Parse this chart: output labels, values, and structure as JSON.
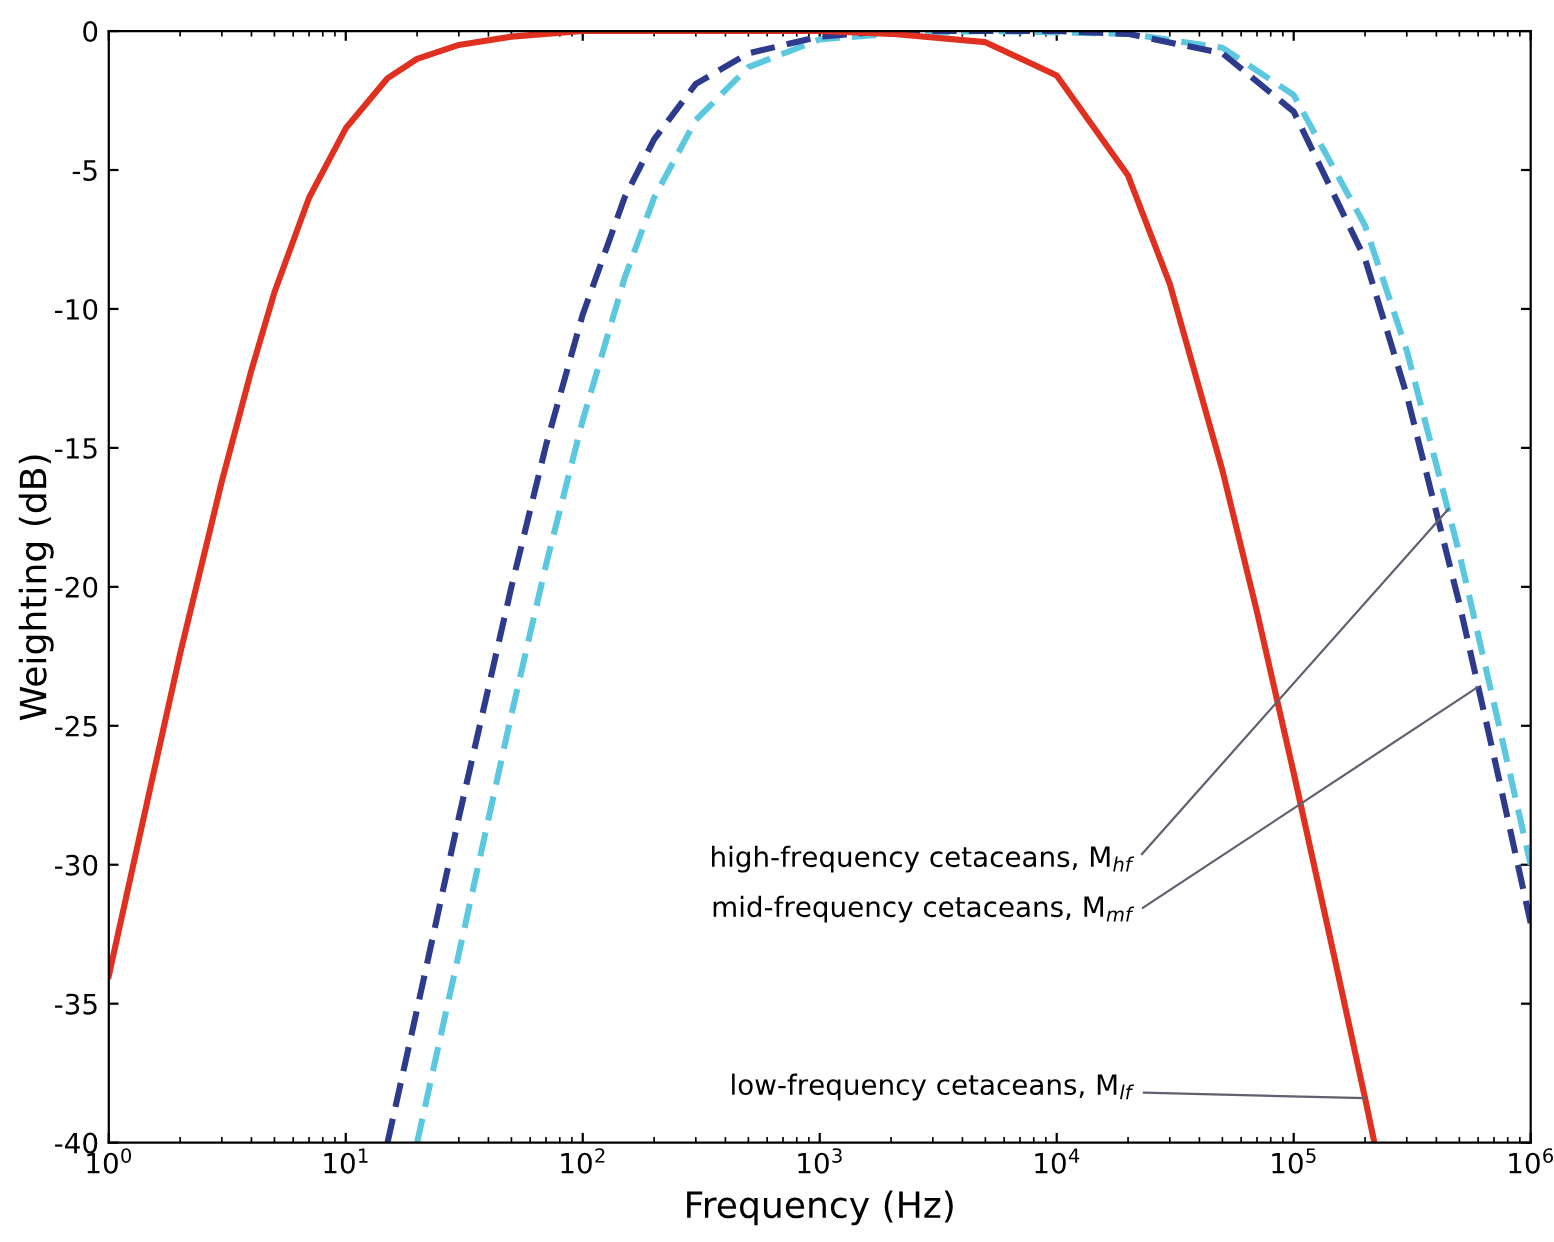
{
  "chart_data": {
    "type": "line",
    "xlabel": "Frequency (Hz)",
    "ylabel": "Weighting (dB)",
    "log": "x",
    "grid": false,
    "legend": false,
    "xlim": [
      1,
      1000000
    ],
    "ylim": [
      -40,
      0
    ],
    "xticks": [
      {
        "value": 1,
        "label": "10$^{0}$"
      },
      {
        "value": 10,
        "label": "10$^{1}$"
      },
      {
        "value": 100,
        "label": "10$^{2}$"
      },
      {
        "value": 1000,
        "label": "10$^{3}$"
      },
      {
        "value": 10000,
        "label": "10$^{4}$"
      },
      {
        "value": 100000,
        "label": "10$^{5}$"
      },
      {
        "value": 1000000,
        "label": "10$^{6}$"
      }
    ],
    "yticks": [
      -40,
      -35,
      -30,
      -25,
      -20,
      -15,
      -10,
      -5,
      0
    ],
    "series": [
      {
        "color": "#5bc8e0",
        "line_style": "dashed",
        "x": [
          20,
          30,
          50,
          70,
          100,
          150,
          200,
          300,
          500,
          1000,
          2000,
          5000,
          20000,
          50000,
          100000,
          200000,
          300000,
          500000,
          700000,
          1000000
        ],
        "values": [
          -40.0,
          -33.2,
          -24.6,
          -19.2,
          -14.0,
          -8.9,
          -6.0,
          -3.2,
          -1.3,
          -0.3,
          -0.1,
          0,
          -0.1,
          -0.6,
          -2.3,
          -7.0,
          -11.5,
          -18.8,
          -24.2,
          -30.0
        ]
      },
      {
        "color": "#2e3a8c",
        "line_style": "dashed",
        "x": [
          15,
          20,
          30,
          50,
          70,
          100,
          150,
          200,
          300,
          500,
          1000,
          2000,
          10000,
          20000,
          50000,
          100000,
          200000,
          300000,
          500000,
          700000,
          1000000
        ],
        "values": [
          -40.0,
          -35.2,
          -28.3,
          -20.0,
          -14.9,
          -10.2,
          -6.0,
          -3.9,
          -1.9,
          -0.8,
          -0.2,
          0,
          0,
          -0.1,
          -0.8,
          -2.9,
          -8.2,
          -13.1,
          -20.6,
          -26.1,
          -32.1
        ]
      },
      {
        "color": "#e03020",
        "line_style": "solid",
        "x": [
          1,
          1.5,
          2,
          3,
          4,
          5,
          7,
          10,
          15,
          20,
          30,
          50,
          100,
          1000,
          2000,
          5000,
          10000,
          20000,
          30000,
          50000,
          70000,
          100000,
          150000,
          200000,
          219000
        ],
        "values": [
          -34.0,
          -27.2,
          -22.4,
          -16.2,
          -12.2,
          -9.4,
          -6.0,
          -3.5,
          -1.7,
          -1.0,
          -0.5,
          -0.2,
          0,
          0,
          -0.1,
          -0.4,
          -1.6,
          -5.2,
          -9.1,
          -15.8,
          -20.9,
          -26.7,
          -33.5,
          -38.4,
          -40.0
        ]
      }
    ],
    "annotations": [
      {
        "text": "high-frequency cetaceans, M$_{hf}$",
        "x": 450000,
        "y": -17.2
      },
      {
        "text": "mid-frequency cetaceans, M$_{mf}$",
        "x": 600000,
        "y": -23.6
      },
      {
        "text": "low-frequency cetaceans, M$_{lf}$",
        "x": 200000,
        "y": -38.4
      }
    ]
  }
}
